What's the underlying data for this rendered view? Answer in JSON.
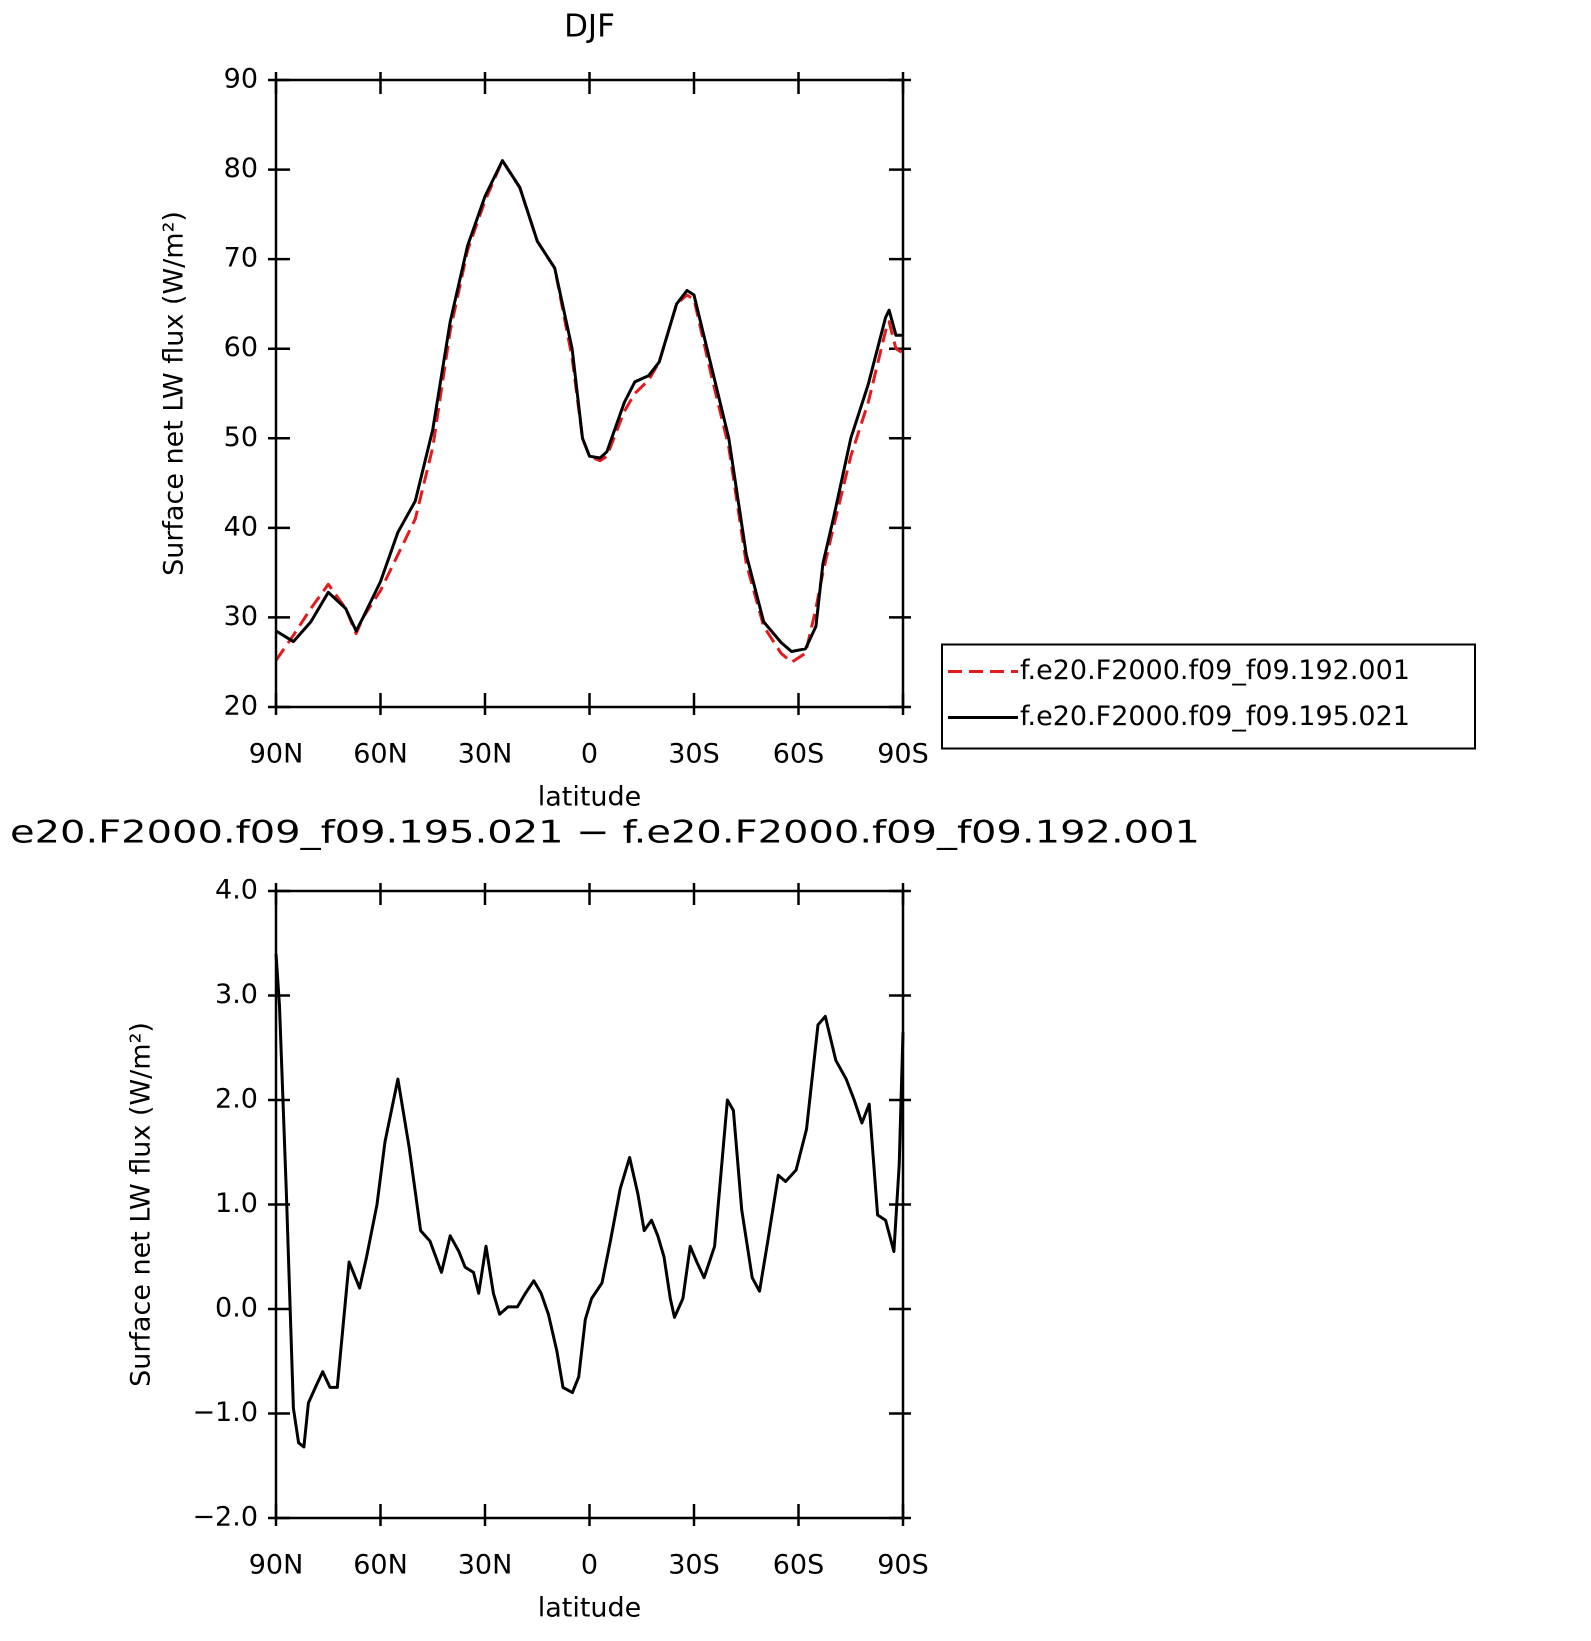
{
  "chart_data": [
    {
      "type": "line",
      "title": "DJF",
      "xlabel": "latitude",
      "ylabel": "Surface net LW flux (W/m²)",
      "xlim": [
        90,
        -90
      ],
      "xticks": [
        {
          "value": 90,
          "label": "90N"
        },
        {
          "value": 60,
          "label": "60N"
        },
        {
          "value": 30,
          "label": "30N"
        },
        0,
        {
          "value": -30,
          "label": "30S"
        },
        {
          "value": -60,
          "label": "60S"
        },
        {
          "value": -90,
          "label": "90S"
        }
      ],
      "ylim": [
        20,
        90
      ],
      "yticks": [
        20,
        30,
        40,
        50,
        60,
        70,
        80,
        90
      ],
      "legend": "right",
      "x": [
        90,
        85,
        80,
        75,
        70,
        67,
        65,
        60,
        55,
        50,
        45,
        40,
        35,
        30,
        25,
        20,
        15,
        10,
        5,
        2,
        0,
        -3,
        -5,
        -10,
        -13,
        -17,
        -20,
        -25,
        -28,
        -30,
        -35,
        -40,
        -45,
        -50,
        -55,
        -58,
        -62,
        -65,
        -67,
        -70,
        -75,
        -80,
        -85,
        -86,
        -88,
        -90
      ],
      "series": [
        {
          "name": "f.e20.F2000.f09_f09.192.001",
          "color": "#e41a1c",
          "dash": true,
          "values": [
            25.2,
            28,
            31,
            33.7,
            31,
            28.2,
            30,
            33,
            37,
            41,
            49,
            62,
            71,
            76.5,
            81,
            78,
            72,
            69,
            59,
            50,
            48,
            47.5,
            48,
            53,
            55,
            56.5,
            58.5,
            65,
            66,
            65.5,
            57,
            49,
            36,
            29,
            26,
            25,
            26,
            31,
            35,
            40,
            48,
            54,
            62,
            63,
            60,
            59.5
          ]
        },
        {
          "name": "f.e20.F2000.f09_f09.195.021",
          "color": "#000000",
          "dash": false,
          "values": [
            28.5,
            27.3,
            29.5,
            32.8,
            31,
            28.5,
            30,
            34,
            39.5,
            43,
            51,
            63,
            71.5,
            77,
            81,
            78,
            72,
            69,
            60,
            50,
            48,
            47.8,
            48.5,
            54,
            56.3,
            57,
            58.5,
            65,
            66.5,
            66,
            58,
            50,
            37,
            29.5,
            27.2,
            26.2,
            26.5,
            29,
            36,
            41,
            50,
            56,
            63.5,
            64.3,
            61.5,
            61.5
          ]
        }
      ]
    },
    {
      "type": "line",
      "title": "e20.F2000.f09_f09.195.021 − f.e20.F2000.f09_f09.192.001",
      "xlabel": "latitude",
      "ylabel": "Surface net LW flux (W/m²)",
      "xlim": [
        90,
        -90
      ],
      "xticks": [
        {
          "value": 90,
          "label": "90N"
        },
        {
          "value": 60,
          "label": "60N"
        },
        {
          "value": 30,
          "label": "30N"
        },
        0,
        {
          "value": -30,
          "label": "30S"
        },
        {
          "value": -60,
          "label": "60S"
        },
        {
          "value": -90,
          "label": "90S"
        }
      ],
      "ylim": [
        -2,
        4
      ],
      "yticks": [
        {
          "value": -2,
          "label": "−2.0"
        },
        {
          "value": -1,
          "label": "−1.0"
        },
        {
          "value": 0,
          "label": "0.0"
        },
        {
          "value": 1,
          "label": "1.0"
        },
        {
          "value": 2,
          "label": "2.0"
        },
        {
          "value": 3,
          "label": "3.0"
        },
        {
          "value": 4,
          "label": "4.0"
        }
      ],
      "x": [
        90,
        89,
        87,
        85,
        83.5,
        82,
        80.7,
        78.7,
        76.6,
        74.5,
        72.4,
        69,
        66,
        64,
        61,
        58.7,
        55,
        51.8,
        48.5,
        45.8,
        42.5,
        40,
        37.5,
        35.7,
        33.3,
        31.8,
        29.7,
        27.6,
        25.8,
        23.4,
        20.7,
        18.4,
        16,
        13.9,
        11.8,
        9.4,
        7.6,
        4.9,
        3.1,
        1.2,
        -0.6,
        -3.6,
        -6,
        -8.8,
        -11.5,
        -13.9,
        -15.7,
        -17.8,
        -19.6,
        -21.4,
        -23.2,
        -24.4,
        -26.8,
        -28.9,
        -30.8,
        -32.9,
        -35.9,
        -39.6,
        -41.3,
        -43.7,
        -46.7,
        -48.8,
        -51.2,
        -54.2,
        -56.3,
        -59.3,
        -62.3,
        -65.6,
        -67.7,
        -70.7,
        -73.7,
        -76,
        -78.2,
        -80.3,
        -82.7,
        -85,
        -87.4,
        -88.9,
        -90
      ],
      "series": [
        {
          "name": null,
          "color": "#000000",
          "dash": false,
          "values": [
            3.4,
            2.9,
            1.1,
            -0.95,
            -1.28,
            -1.32,
            -0.9,
            -0.75,
            -0.6,
            -0.75,
            -0.75,
            0.45,
            0.2,
            0.5,
            1.0,
            1.6,
            2.2,
            1.55,
            0.75,
            0.65,
            0.35,
            0.7,
            0.55,
            0.4,
            0.35,
            0.15,
            0.6,
            0.15,
            -0.05,
            0.02,
            0.02,
            0.15,
            0.27,
            0.15,
            -0.05,
            -0.4,
            -0.75,
            -0.8,
            -0.65,
            -0.1,
            0.1,
            0.25,
            0.65,
            1.15,
            1.45,
            1.1,
            0.75,
            0.85,
            0.7,
            0.5,
            0.1,
            -0.08,
            0.1,
            0.6,
            0.45,
            0.3,
            0.6,
            2.0,
            1.9,
            0.95,
            0.3,
            0.17,
            0.65,
            1.28,
            1.22,
            1.33,
            1.72,
            2.72,
            2.8,
            2.38,
            2.2,
            2.0,
            1.78,
            1.96,
            0.9,
            0.85,
            0.55,
            1.38,
            2.65
          ]
        }
      ]
    }
  ]
}
